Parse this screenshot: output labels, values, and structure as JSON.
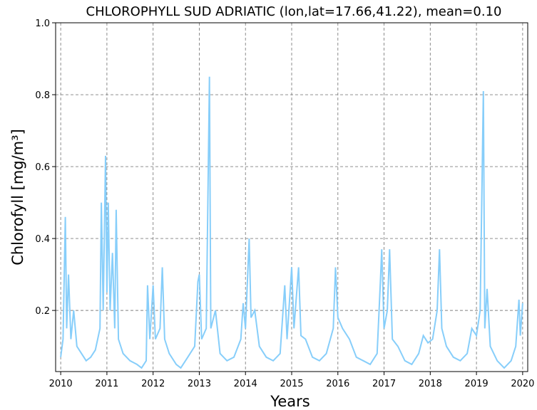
{
  "chart_data": {
    "type": "line",
    "title": "CHLOROPHYLL SUD ADRIATIC (lon,lat=17.66,41.22), mean=0.10",
    "x_label": "Years",
    "y_label": "Chlorofyll [mg/m³]",
    "x": [
      2010.0,
      2010.05,
      2010.1,
      2010.13,
      2010.17,
      2010.22,
      2010.28,
      2010.35,
      2010.45,
      2010.55,
      2010.65,
      2010.75,
      2010.85,
      2010.88,
      2010.92,
      2010.97,
      2011.0,
      2011.03,
      2011.07,
      2011.12,
      2011.17,
      2011.2,
      2011.25,
      2011.35,
      2011.5,
      2011.65,
      2011.75,
      2011.85,
      2011.88,
      2011.93,
      2012.0,
      2012.05,
      2012.15,
      2012.2,
      2012.25,
      2012.35,
      2012.5,
      2012.6,
      2012.75,
      2012.9,
      2012.97,
      2013.0,
      2013.05,
      2013.15,
      2013.22,
      2013.25,
      2013.35,
      2013.45,
      2013.6,
      2013.75,
      2013.9,
      2013.95,
      2014.0,
      2014.08,
      2014.12,
      2014.2,
      2014.3,
      2014.45,
      2014.6,
      2014.75,
      2014.85,
      2014.9,
      2015.0,
      2015.05,
      2015.15,
      2015.2,
      2015.3,
      2015.45,
      2015.6,
      2015.75,
      2015.9,
      2015.95,
      2016.0,
      2016.1,
      2016.25,
      2016.4,
      2016.55,
      2016.7,
      2016.85,
      2016.92,
      2016.95,
      2017.0,
      2017.07,
      2017.12,
      2017.18,
      2017.3,
      2017.45,
      2017.6,
      2017.75,
      2017.85,
      2017.95,
      2018.05,
      2018.15,
      2018.2,
      2018.25,
      2018.35,
      2018.5,
      2018.65,
      2018.8,
      2018.9,
      2019.0,
      2019.08,
      2019.15,
      2019.18,
      2019.23,
      2019.3,
      2019.45,
      2019.6,
      2019.75,
      2019.85,
      2019.92,
      2019.95,
      2020.0
    ],
    "series": [
      {
        "name": "Chlorophyll",
        "color": "#87cefa",
        "values": [
          0.07,
          0.12,
          0.46,
          0.15,
          0.3,
          0.12,
          0.2,
          0.1,
          0.08,
          0.06,
          0.07,
          0.09,
          0.15,
          0.5,
          0.2,
          0.63,
          0.25,
          0.5,
          0.2,
          0.36,
          0.15,
          0.48,
          0.12,
          0.08,
          0.06,
          0.05,
          0.04,
          0.06,
          0.27,
          0.12,
          0.27,
          0.12,
          0.15,
          0.32,
          0.12,
          0.08,
          0.05,
          0.04,
          0.07,
          0.1,
          0.28,
          0.3,
          0.12,
          0.15,
          0.85,
          0.15,
          0.2,
          0.08,
          0.06,
          0.07,
          0.12,
          0.22,
          0.15,
          0.4,
          0.18,
          0.2,
          0.1,
          0.07,
          0.06,
          0.08,
          0.27,
          0.12,
          0.32,
          0.15,
          0.32,
          0.13,
          0.12,
          0.07,
          0.06,
          0.08,
          0.15,
          0.32,
          0.18,
          0.15,
          0.12,
          0.07,
          0.06,
          0.05,
          0.08,
          0.28,
          0.37,
          0.15,
          0.2,
          0.37,
          0.12,
          0.1,
          0.06,
          0.05,
          0.08,
          0.13,
          0.11,
          0.12,
          0.2,
          0.37,
          0.15,
          0.1,
          0.07,
          0.06,
          0.08,
          0.15,
          0.13,
          0.2,
          0.81,
          0.15,
          0.26,
          0.1,
          0.06,
          0.04,
          0.06,
          0.1,
          0.23,
          0.13,
          0.22
        ]
      }
    ],
    "xlim": [
      2009.89,
      2020.11
    ],
    "ylim": [
      0.03,
      1.0
    ],
    "xticks": [
      2010,
      2011,
      2012,
      2013,
      2014,
      2015,
      2016,
      2017,
      2018,
      2019,
      2020
    ],
    "yticks": [
      0.2,
      0.4,
      0.6,
      0.8,
      {
        "value": 1.0,
        "label": "1.0"
      }
    ],
    "grid": true
  }
}
